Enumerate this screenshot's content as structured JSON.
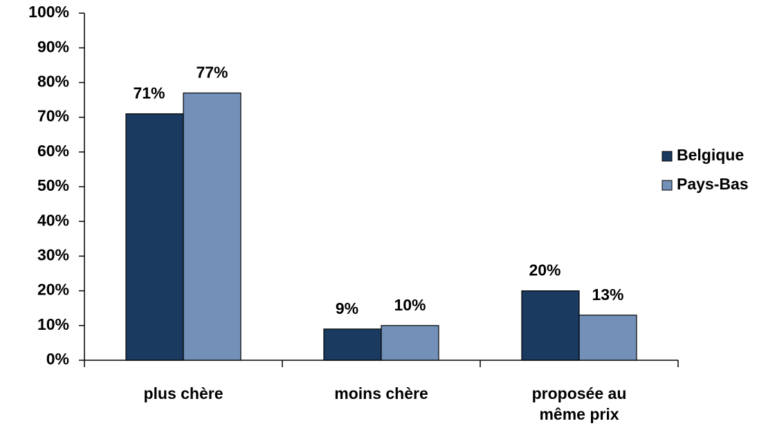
{
  "chart_data": {
    "type": "bar",
    "categories": [
      "plus chère",
      "moins chère",
      "proposée au\nmême prix"
    ],
    "series": [
      {
        "name": "Belgique",
        "color": "#1b3a60",
        "values": [
          71,
          9,
          20
        ],
        "value_labels": [
          "71%",
          "9%",
          "20%"
        ]
      },
      {
        "name": "Pays-Bas",
        "color": "#7290b8",
        "values": [
          77,
          10,
          13
        ],
        "value_labels": [
          "77%",
          "10%",
          "13%"
        ]
      }
    ],
    "ylim": [
      0,
      100
    ],
    "yticks": [
      {
        "value": 0,
        "label": "0%"
      },
      {
        "value": 10,
        "label": "10%"
      },
      {
        "value": 20,
        "label": "20%"
      },
      {
        "value": 30,
        "label": "30%"
      },
      {
        "value": 40,
        "label": "40%"
      },
      {
        "value": 50,
        "label": "50%"
      },
      {
        "value": 60,
        "label": "60%"
      },
      {
        "value": 70,
        "label": "70%"
      },
      {
        "value": 80,
        "label": "80%"
      },
      {
        "value": 90,
        "label": "90%"
      },
      {
        "value": 100,
        "label": "100%"
      }
    ],
    "legend": "right"
  }
}
